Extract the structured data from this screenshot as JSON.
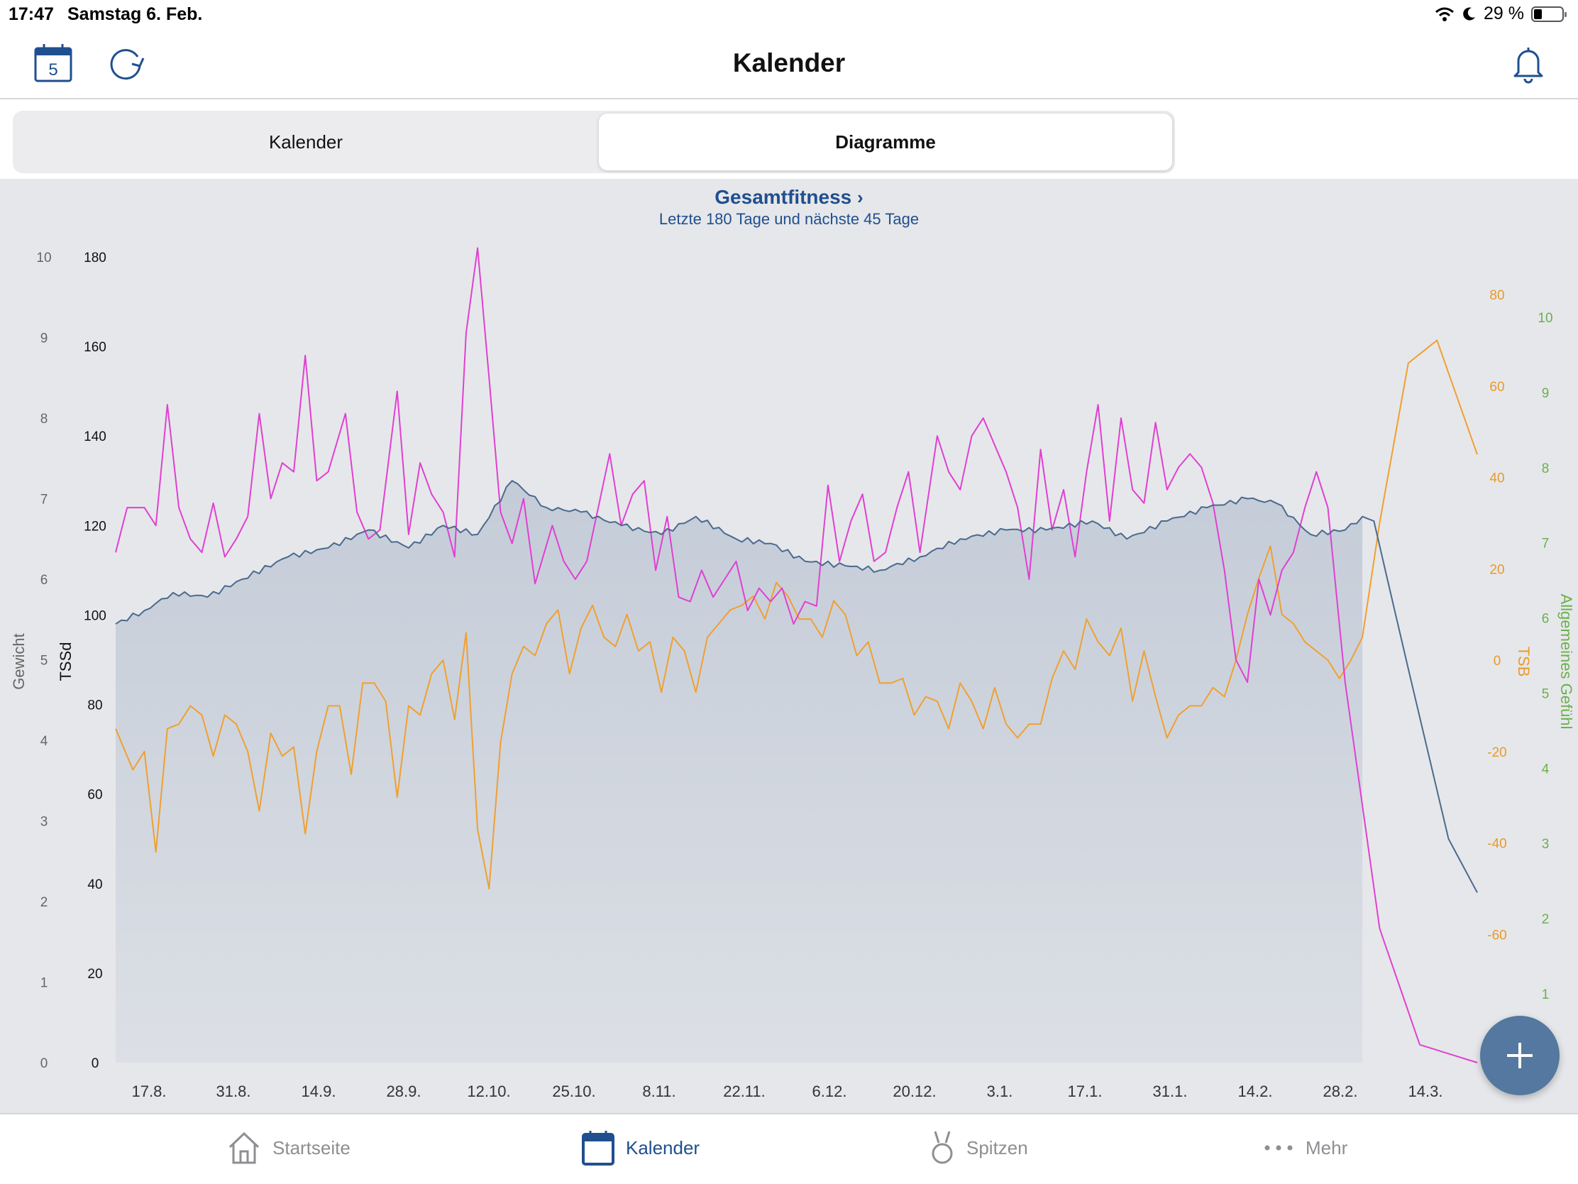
{
  "status": {
    "time": "17:47",
    "date": "Samstag 6. Feb.",
    "battery": "29 %"
  },
  "nav": {
    "title": "Kalender",
    "calendar_day": "5"
  },
  "segments": [
    {
      "label": "Kalender",
      "active": false
    },
    {
      "label": "Diagramme",
      "active": true
    }
  ],
  "chart": {
    "title": "Gesamtfitness",
    "subtitle": "Letzte 180 Tage und nächste 45 Tage"
  },
  "colors": {
    "accent": "#1f4f8f",
    "tssd": "#e040d2",
    "tsb": "#f0a030",
    "fitness": "#4a6a8f",
    "fab": "#54789f",
    "feeling": "#6ab04c"
  },
  "tabs": [
    {
      "label": "Startseite",
      "icon": "home-icon",
      "active": false
    },
    {
      "label": "Kalender",
      "icon": "calendar-icon",
      "active": true
    },
    {
      "label": "Spitzen",
      "icon": "medal-icon",
      "active": false
    },
    {
      "label": "Mehr",
      "icon": "more-icon",
      "active": false
    }
  ],
  "chart_data": {
    "type": "line",
    "title": "Gesamtfitness",
    "subtitle": "Letzte 180 Tage und nächste 45 Tage",
    "x_labels": [
      "17.8.",
      "31.8.",
      "14.9.",
      "28.9.",
      "12.10.",
      "25.10.",
      "8.11.",
      "22.11.",
      "6.12.",
      "20.12.",
      "3.1.",
      "17.1.",
      "31.1.",
      "14.2.",
      "28.2.",
      "14.3."
    ],
    "axes": {
      "gewicht": {
        "label": "Gewicht",
        "range": [
          0,
          10
        ],
        "ticks": [
          "0",
          "1",
          "2",
          "3",
          "4",
          "5",
          "6",
          "7",
          "8",
          "9",
          "10"
        ]
      },
      "tssd": {
        "label": "TSSd",
        "range": [
          0,
          180
        ],
        "ticks": [
          "0",
          "20",
          "40",
          "60",
          "80",
          "100",
          "120",
          "140",
          "160",
          "180"
        ]
      },
      "tsb": {
        "label": "TSB",
        "range": [
          -60,
          80
        ],
        "ticks": [
          "-60",
          "-40",
          "-20",
          "0",
          "20",
          "40",
          "60",
          "80"
        ]
      },
      "gefuehl": {
        "label": "Allgemeines Gefühl",
        "range": [
          1,
          10
        ],
        "ticks": [
          "1",
          "2",
          "3",
          "4",
          "5",
          "6",
          "7",
          "8",
          "9",
          "10"
        ]
      }
    },
    "series": [
      {
        "name": "fitness",
        "axis": "tssd",
        "keys": [
          [
            0,
            98
          ],
          [
            5,
            101
          ],
          [
            10,
            105
          ],
          [
            16,
            104
          ],
          [
            22,
            108
          ],
          [
            30,
            113
          ],
          [
            37,
            115
          ],
          [
            44,
            119
          ],
          [
            51,
            115
          ],
          [
            57,
            120
          ],
          [
            63,
            118
          ],
          [
            69,
            130
          ],
          [
            75,
            124
          ],
          [
            81,
            123
          ],
          [
            88,
            120
          ],
          [
            95,
            118
          ],
          [
            101,
            122
          ],
          [
            108,
            117
          ],
          [
            114,
            116
          ],
          [
            120,
            112
          ],
          [
            127,
            111
          ],
          [
            133,
            110
          ],
          [
            140,
            113
          ],
          [
            147,
            117
          ],
          [
            155,
            119
          ],
          [
            162,
            119
          ],
          [
            170,
            121
          ],
          [
            176,
            117
          ],
          [
            183,
            121
          ],
          [
            190,
            124
          ],
          [
            197,
            126
          ],
          [
            202,
            125
          ],
          [
            208,
            118
          ],
          [
            214,
            119
          ],
          [
            217,
            122
          ],
          [
            219,
            121
          ],
          [
            225,
            88
          ],
          [
            232,
            50
          ],
          [
            237,
            38
          ]
        ]
      },
      {
        "name": "tssd",
        "axis": "tssd",
        "keys": [
          [
            0,
            114
          ],
          [
            2,
            124
          ],
          [
            5,
            124
          ],
          [
            7,
            120
          ],
          [
            9,
            147
          ],
          [
            11,
            124
          ],
          [
            13,
            117
          ],
          [
            15,
            114
          ],
          [
            17,
            125
          ],
          [
            19,
            113
          ],
          [
            21,
            117
          ],
          [
            23,
            122
          ],
          [
            25,
            145
          ],
          [
            27,
            126
          ],
          [
            29,
            134
          ],
          [
            31,
            132
          ],
          [
            33,
            158
          ],
          [
            35,
            130
          ],
          [
            37,
            132
          ],
          [
            40,
            145
          ],
          [
            42,
            123
          ],
          [
            44,
            117
          ],
          [
            46,
            119
          ],
          [
            49,
            150
          ],
          [
            51,
            118
          ],
          [
            53,
            134
          ],
          [
            55,
            127
          ],
          [
            57,
            123
          ],
          [
            59,
            113
          ],
          [
            61,
            163
          ],
          [
            63,
            182
          ],
          [
            65,
            153
          ],
          [
            67,
            123
          ],
          [
            69,
            116
          ],
          [
            71,
            126
          ],
          [
            73,
            107
          ],
          [
            76,
            120
          ],
          [
            78,
            112
          ],
          [
            80,
            108
          ],
          [
            82,
            112
          ],
          [
            84,
            124
          ],
          [
            86,
            136
          ],
          [
            88,
            120
          ],
          [
            90,
            127
          ],
          [
            92,
            130
          ],
          [
            94,
            110
          ],
          [
            96,
            122
          ],
          [
            98,
            104
          ],
          [
            100,
            103
          ],
          [
            102,
            110
          ],
          [
            104,
            104
          ],
          [
            106,
            108
          ],
          [
            108,
            112
          ],
          [
            110,
            101
          ],
          [
            112,
            106
          ],
          [
            114,
            103
          ],
          [
            116,
            106
          ],
          [
            118,
            98
          ],
          [
            120,
            103
          ],
          [
            122,
            102
          ],
          [
            124,
            129
          ],
          [
            126,
            112
          ],
          [
            128,
            121
          ],
          [
            130,
            127
          ],
          [
            132,
            112
          ],
          [
            134,
            114
          ],
          [
            136,
            124
          ],
          [
            138,
            132
          ],
          [
            140,
            114
          ],
          [
            143,
            140
          ],
          [
            145,
            132
          ],
          [
            147,
            128
          ],
          [
            149,
            140
          ],
          [
            151,
            144
          ],
          [
            153,
            138
          ],
          [
            155,
            132
          ],
          [
            157,
            124
          ],
          [
            159,
            108
          ],
          [
            161,
            137
          ],
          [
            163,
            119
          ],
          [
            165,
            128
          ],
          [
            167,
            113
          ],
          [
            169,
            132
          ],
          [
            171,
            147
          ],
          [
            173,
            121
          ],
          [
            175,
            144
          ],
          [
            177,
            128
          ],
          [
            179,
            125
          ],
          [
            181,
            143
          ],
          [
            183,
            128
          ],
          [
            185,
            133
          ],
          [
            187,
            136
          ],
          [
            189,
            133
          ],
          [
            191,
            125
          ],
          [
            193,
            110
          ],
          [
            195,
            90
          ],
          [
            197,
            85
          ],
          [
            199,
            108
          ],
          [
            201,
            100
          ],
          [
            203,
            110
          ],
          [
            205,
            114
          ],
          [
            207,
            124
          ],
          [
            209,
            132
          ],
          [
            211,
            124
          ],
          [
            214,
            85
          ],
          [
            220,
            30
          ],
          [
            227,
            4
          ],
          [
            237,
            0
          ]
        ]
      },
      {
        "name": "tsb",
        "axis": "tsb",
        "keys": [
          [
            0,
            -15
          ],
          [
            3,
            -24
          ],
          [
            5,
            -20
          ],
          [
            7,
            -42
          ],
          [
            9,
            -15
          ],
          [
            11,
            -14
          ],
          [
            13,
            -10
          ],
          [
            15,
            -12
          ],
          [
            17,
            -21
          ],
          [
            19,
            -12
          ],
          [
            21,
            -14
          ],
          [
            23,
            -20
          ],
          [
            25,
            -33
          ],
          [
            27,
            -16
          ],
          [
            29,
            -21
          ],
          [
            31,
            -19
          ],
          [
            33,
            -38
          ],
          [
            35,
            -20
          ],
          [
            37,
            -10
          ],
          [
            39,
            -10
          ],
          [
            41,
            -25
          ],
          [
            43,
            -5
          ],
          [
            45,
            -5
          ],
          [
            47,
            -9
          ],
          [
            49,
            -30
          ],
          [
            51,
            -10
          ],
          [
            53,
            -12
          ],
          [
            55,
            -3
          ],
          [
            57,
            0
          ],
          [
            59,
            -13
          ],
          [
            61,
            6
          ],
          [
            63,
            -37
          ],
          [
            65,
            -50
          ],
          [
            67,
            -18
          ],
          [
            69,
            -3
          ],
          [
            71,
            3
          ],
          [
            73,
            1
          ],
          [
            75,
            8
          ],
          [
            77,
            11
          ],
          [
            79,
            -3
          ],
          [
            81,
            7
          ],
          [
            83,
            12
          ],
          [
            85,
            5
          ],
          [
            87,
            3
          ],
          [
            89,
            10
          ],
          [
            91,
            2
          ],
          [
            93,
            4
          ],
          [
            95,
            -7
          ],
          [
            97,
            5
          ],
          [
            99,
            2
          ],
          [
            101,
            -7
          ],
          [
            103,
            5
          ],
          [
            105,
            8
          ],
          [
            107,
            11
          ],
          [
            109,
            12
          ],
          [
            111,
            14
          ],
          [
            113,
            9
          ],
          [
            115,
            17
          ],
          [
            117,
            14
          ],
          [
            119,
            9
          ],
          [
            121,
            9
          ],
          [
            123,
            5
          ],
          [
            125,
            13
          ],
          [
            127,
            10
          ],
          [
            129,
            1
          ],
          [
            131,
            4
          ],
          [
            133,
            -5
          ],
          [
            135,
            -5
          ],
          [
            137,
            -4
          ],
          [
            139,
            -12
          ],
          [
            141,
            -8
          ],
          [
            143,
            -9
          ],
          [
            145,
            -15
          ],
          [
            147,
            -5
          ],
          [
            149,
            -9
          ],
          [
            151,
            -15
          ],
          [
            153,
            -6
          ],
          [
            155,
            -14
          ],
          [
            157,
            -17
          ],
          [
            159,
            -14
          ],
          [
            161,
            -14
          ],
          [
            163,
            -4
          ],
          [
            165,
            2
          ],
          [
            167,
            -2
          ],
          [
            169,
            9
          ],
          [
            171,
            4
          ],
          [
            173,
            1
          ],
          [
            175,
            7
          ],
          [
            177,
            -9
          ],
          [
            179,
            2
          ],
          [
            181,
            -8
          ],
          [
            183,
            -17
          ],
          [
            185,
            -12
          ],
          [
            187,
            -10
          ],
          [
            189,
            -10
          ],
          [
            191,
            -6
          ],
          [
            193,
            -8
          ],
          [
            195,
            0
          ],
          [
            197,
            10
          ],
          [
            199,
            18
          ],
          [
            201,
            25
          ],
          [
            203,
            10
          ],
          [
            205,
            8
          ],
          [
            207,
            4
          ],
          [
            209,
            2
          ],
          [
            211,
            0
          ],
          [
            213,
            -4
          ],
          [
            215,
            0
          ],
          [
            217,
            5
          ],
          [
            220,
            30
          ],
          [
            225,
            65
          ],
          [
            230,
            70
          ],
          [
            237,
            45
          ]
        ]
      }
    ]
  }
}
